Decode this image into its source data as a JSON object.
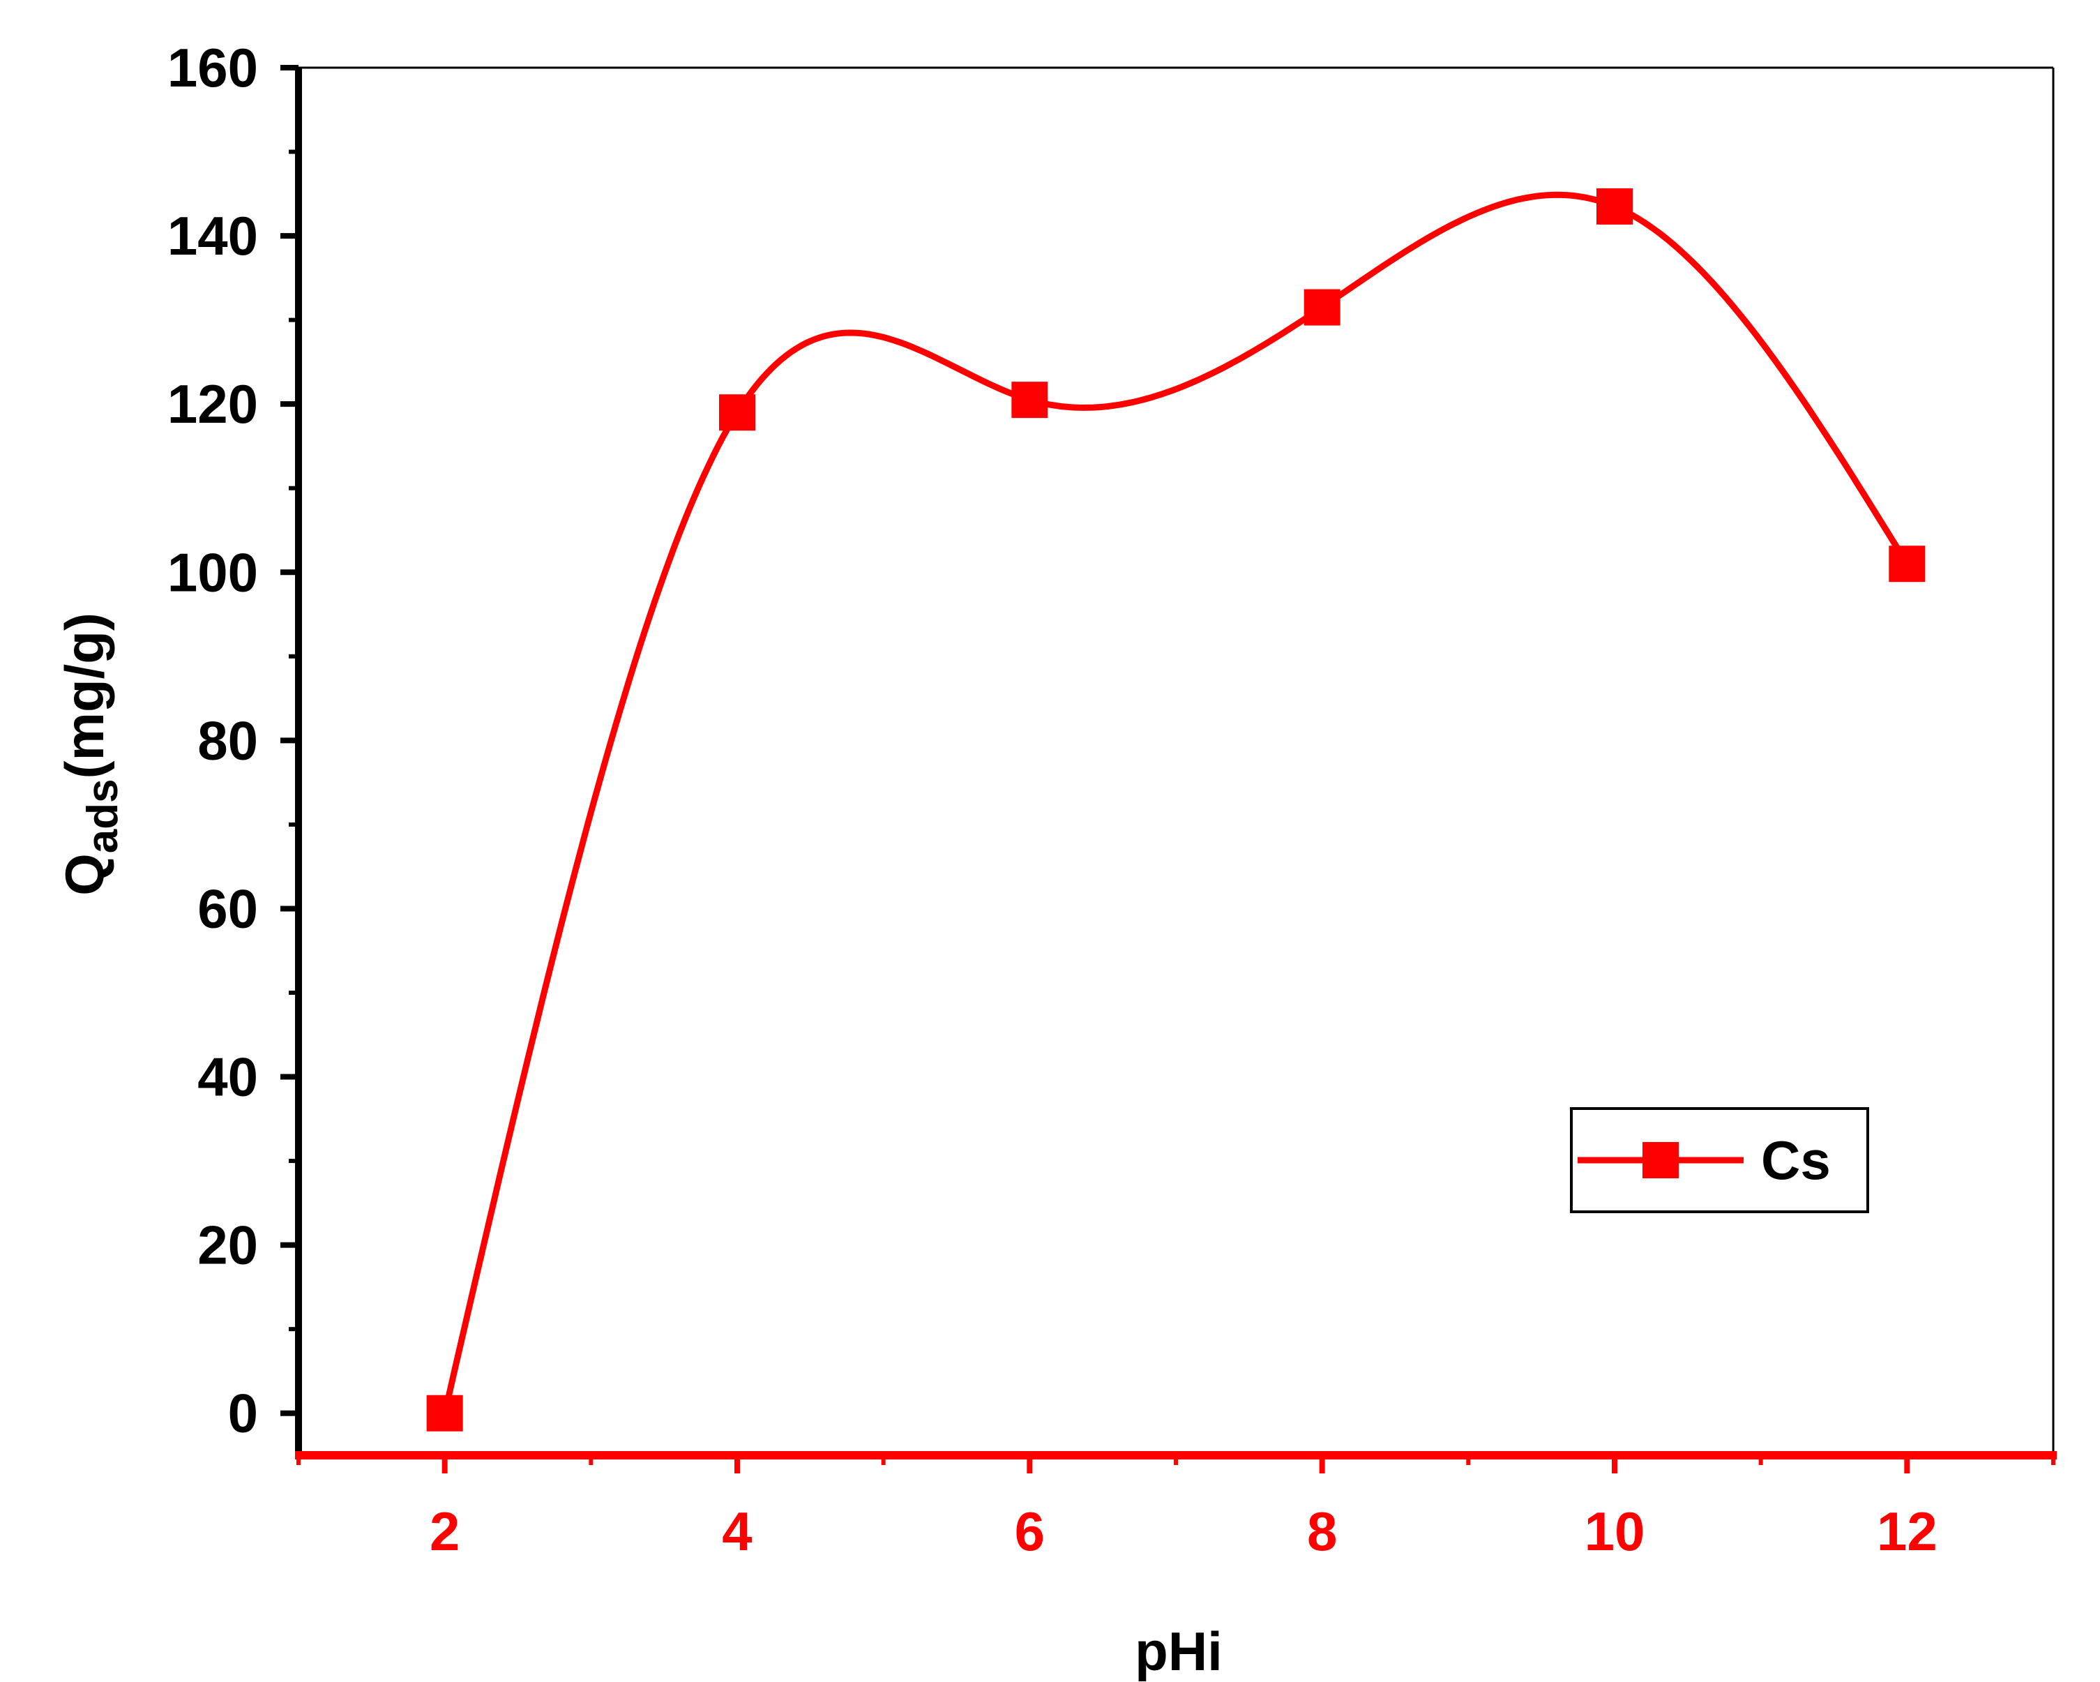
{
  "chart_data": {
    "type": "line",
    "xlabel": "pHi",
    "ylabel": {
      "main": "Q",
      "subscript": "ads",
      "unit": "(mg/g)"
    },
    "xlim": [
      1,
      13
    ],
    "ylim": [
      -5,
      160
    ],
    "x_ticks": [
      2,
      4,
      6,
      8,
      10,
      12
    ],
    "y_ticks": [
      0,
      20,
      40,
      60,
      80,
      100,
      120,
      140,
      160
    ],
    "grid": false,
    "legend_position": "bottom-right",
    "smoothed": true,
    "series": [
      {
        "name": "Cs",
        "marker": "square",
        "color": "#ff0000",
        "x": [
          2,
          4,
          6,
          8,
          10,
          12
        ],
        "y": [
          0,
          119,
          120.5,
          131.5,
          143.5,
          101
        ]
      }
    ]
  },
  "colors": {
    "series": "#ff0000",
    "left_axis": "#000000",
    "bottom_axis": "#ff0000",
    "frame": "#000000"
  }
}
